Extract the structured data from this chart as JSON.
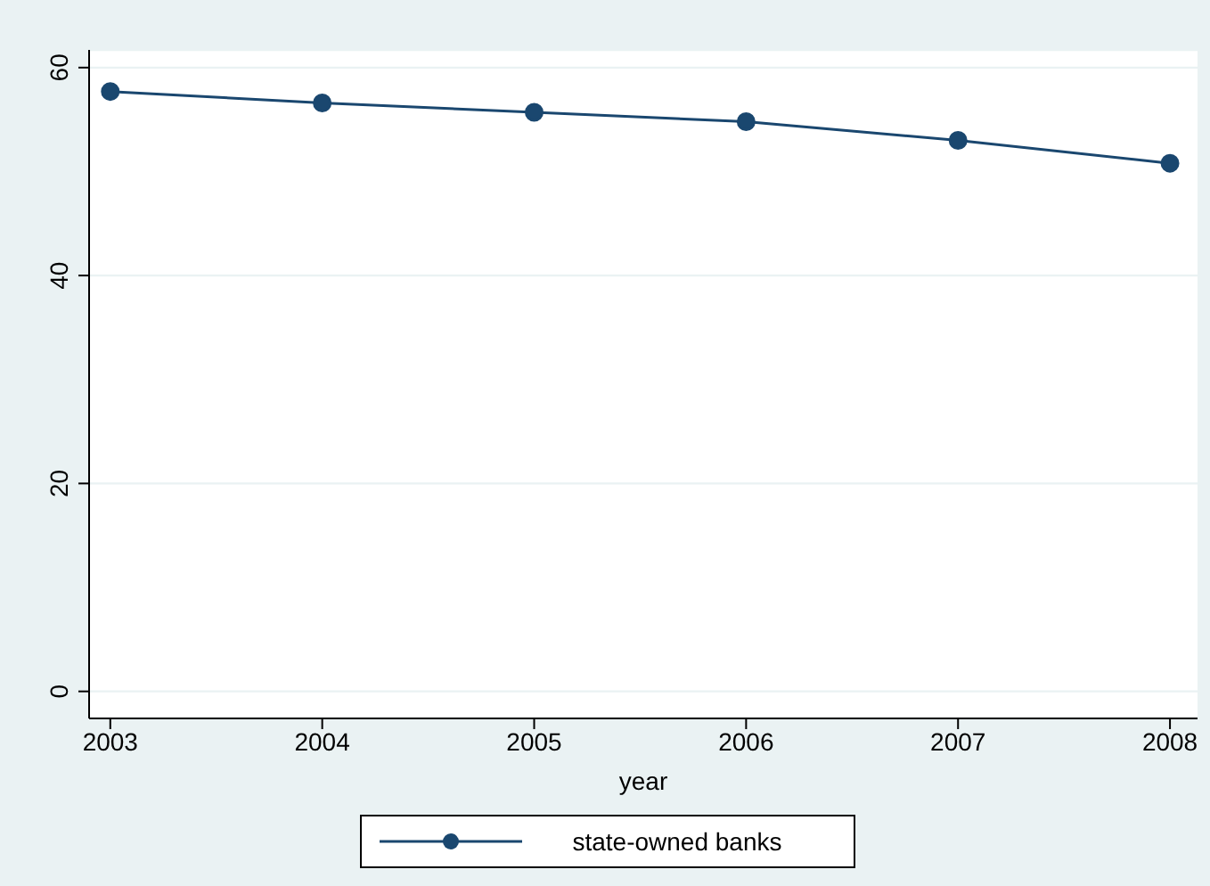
{
  "chart_data": {
    "type": "line",
    "xlabel": "year",
    "x": [
      2003,
      2004,
      2005,
      2006,
      2007,
      2008
    ],
    "series": [
      {
        "name": "state-owned banks",
        "color": "#1a476f",
        "values": [
          57.7,
          56.6,
          55.7,
          54.8,
          53.0,
          50.8
        ]
      }
    ],
    "xlim": [
      2002.9,
      2008.13
    ],
    "xticks": [
      2003,
      2004,
      2005,
      2006,
      2007,
      2008
    ],
    "ylim": [
      -2.6,
      61.7
    ],
    "yticks": [
      0,
      20,
      40,
      60
    ],
    "grid": "y",
    "legend": "bottom",
    "marker": "circle",
    "line_style": "solid"
  }
}
